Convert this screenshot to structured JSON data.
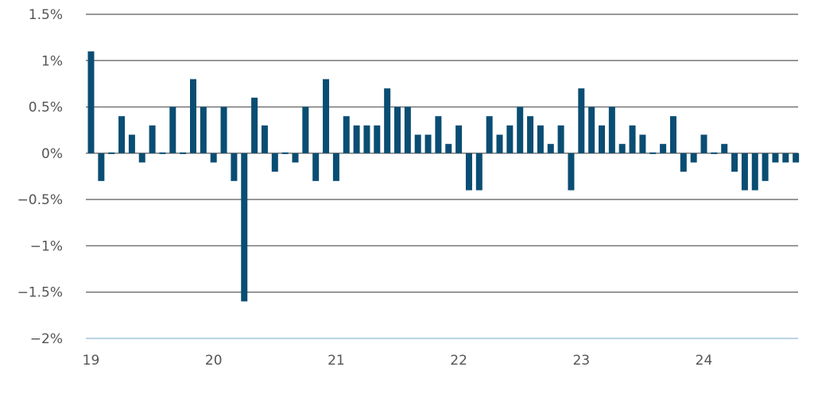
{
  "chart_data": {
    "type": "bar",
    "title": "",
    "xlabel": "",
    "ylabel": "",
    "ylim": [
      -2,
      1.5
    ],
    "y_ticks": [
      1.5,
      1,
      0.5,
      0,
      -0.5,
      -1,
      -1.5,
      -2
    ],
    "y_tick_labels": [
      "1.5%",
      "1%",
      "0.5%",
      "0%",
      "−0.5%",
      "−1%",
      "−1.5%",
      "−2%"
    ],
    "x_ticks": [
      {
        "label": "19",
        "index": 0
      },
      {
        "label": "20",
        "index": 12
      },
      {
        "label": "21",
        "index": 24
      },
      {
        "label": "22",
        "index": 36
      },
      {
        "label": "23",
        "index": 48
      },
      {
        "label": "24",
        "index": 60
      }
    ],
    "grid": true,
    "bar_color": "#0a4d73",
    "series": [
      {
        "values": [
          1.1,
          -0.3,
          0.0,
          0.4,
          0.2,
          -0.1,
          0.3,
          0.0,
          0.5,
          0.0,
          0.8,
          0.5,
          -0.1,
          0.5,
          -0.3,
          -1.6,
          0.6,
          0.3,
          -0.2,
          0.0,
          -0.1,
          0.5,
          -0.3,
          0.8,
          -0.3,
          0.4,
          0.3,
          0.3,
          0.3,
          0.7,
          0.5,
          0.5,
          0.2,
          0.2,
          0.4,
          0.1,
          0.3,
          -0.4,
          -0.4,
          0.4,
          0.2,
          0.3,
          0.5,
          0.4,
          0.3,
          0.1,
          0.3,
          -0.4,
          0.7,
          0.5,
          0.3,
          0.5,
          0.1,
          0.3,
          0.2,
          0.0,
          0.1,
          0.4,
          -0.2,
          -0.1,
          0.2,
          0.0,
          0.1,
          -0.2,
          -0.4,
          -0.4,
          -0.3,
          -0.1,
          -0.1,
          -0.1
        ]
      }
    ]
  }
}
